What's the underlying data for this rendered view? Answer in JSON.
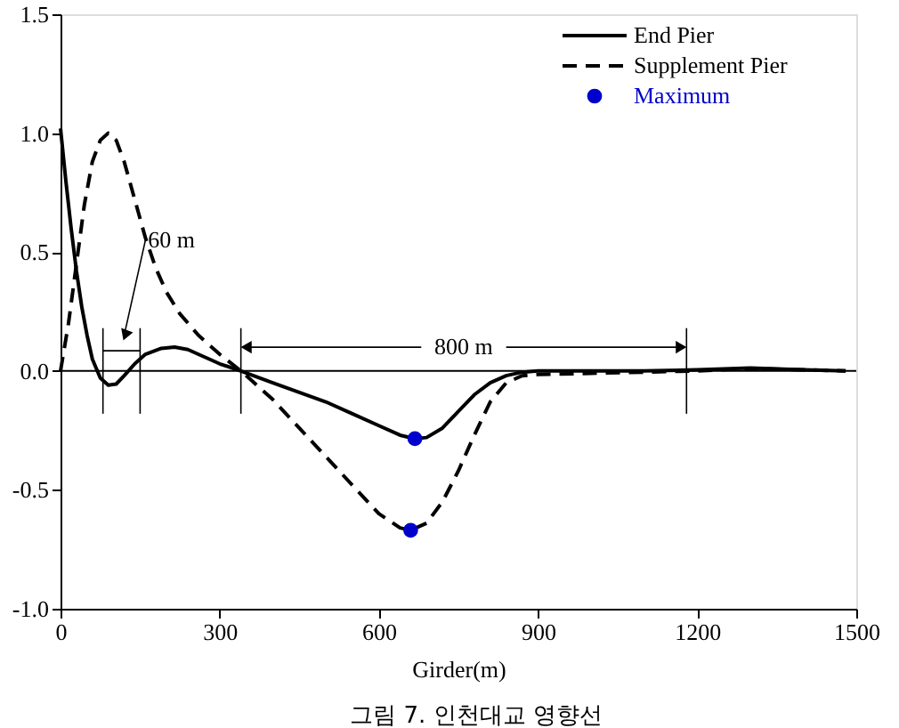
{
  "chart_data": {
    "type": "line",
    "xlabel": "Girder(m)",
    "xlim": [
      0,
      1500
    ],
    "xticks": [
      0,
      300,
      600,
      900,
      1200,
      1500
    ],
    "ylim": [
      -1.0,
      1.5
    ],
    "yticks": [
      {
        "value": -1,
        "label": "-1.0"
      },
      {
        "value": -0.5,
        "label": "-0.5"
      },
      {
        "value": 0,
        "label": "0.0"
      },
      {
        "value": 0.5,
        "label": "0.5"
      },
      {
        "value": 1,
        "label": "1.0"
      },
      {
        "value": 1.5,
        "label": "1.5"
      }
    ],
    "grid": false,
    "legend": "top right",
    "marker": "none",
    "ref_lines": [
      {
        "axis": "y",
        "value": 0,
        "color": "#000000",
        "line_style": "solid"
      },
      {
        "axis": "x",
        "value": 80,
        "color": "#000000",
        "line_style": "solid"
      },
      {
        "axis": "x",
        "value": 150,
        "color": "#000000",
        "line_style": "solid"
      },
      {
        "axis": "x",
        "value": 340,
        "color": "#000000",
        "line_style": "solid"
      },
      {
        "axis": "x",
        "value": 1180,
        "color": "#000000",
        "line_style": "solid"
      }
    ],
    "annotations": [
      "60 m",
      "800 m",
      "그림 7. 인천대교 영향선"
    ],
    "series": [
      {
        "name": "End Pier",
        "color": "#000000",
        "line_style": "solid",
        "x": [
          0,
          10,
          20,
          30,
          40,
          50,
          60,
          75,
          90,
          105,
          120,
          140,
          160,
          190,
          215,
          240,
          270,
          300,
          340,
          400,
          450,
          500,
          550,
          600,
          640,
          668,
          690,
          720,
          750,
          780,
          810,
          840,
          870,
          900,
          1000,
          1100,
          1200,
          1300,
          1400,
          1480
        ],
        "values": [
          1.02,
          0.8,
          0.6,
          0.42,
          0.27,
          0.15,
          0.05,
          -0.03,
          -0.06,
          -0.055,
          -0.02,
          0.03,
          0.07,
          0.095,
          0.1,
          0.09,
          0.06,
          0.03,
          0.0,
          -0.05,
          -0.09,
          -0.13,
          -0.18,
          -0.23,
          -0.27,
          -0.285,
          -0.28,
          -0.24,
          -0.17,
          -0.1,
          -0.05,
          -0.02,
          -0.005,
          0.0,
          0.0,
          0.0,
          0.005,
          0.012,
          0.005,
          0.0
        ]
      },
      {
        "name": "Supplement Pier",
        "color": "#000000",
        "line_style": "dashed",
        "x": [
          0,
          15,
          30,
          45,
          60,
          75,
          90,
          105,
          120,
          140,
          160,
          180,
          200,
          225,
          260,
          300,
          340,
          400,
          450,
          500,
          550,
          600,
          640,
          660,
          690,
          720,
          750,
          780,
          810,
          840,
          870,
          900,
          1000,
          1100,
          1200,
          1300,
          1400,
          1480
        ],
        "values": [
          0.0,
          0.2,
          0.45,
          0.7,
          0.88,
          0.97,
          1.0,
          0.97,
          0.88,
          0.72,
          0.56,
          0.43,
          0.33,
          0.24,
          0.15,
          0.07,
          0.0,
          -0.12,
          -0.24,
          -0.36,
          -0.48,
          -0.6,
          -0.66,
          -0.67,
          -0.64,
          -0.55,
          -0.42,
          -0.27,
          -0.13,
          -0.05,
          -0.02,
          -0.015,
          -0.01,
          -0.005,
          0.0,
          0.01,
          0.005,
          0.0
        ]
      },
      {
        "name": "Maximum",
        "type": "scatter",
        "marker": "circle",
        "color": "#0000cc",
        "x": [
          668,
          660
        ],
        "values": [
          -0.285,
          -0.67
        ]
      }
    ]
  }
}
